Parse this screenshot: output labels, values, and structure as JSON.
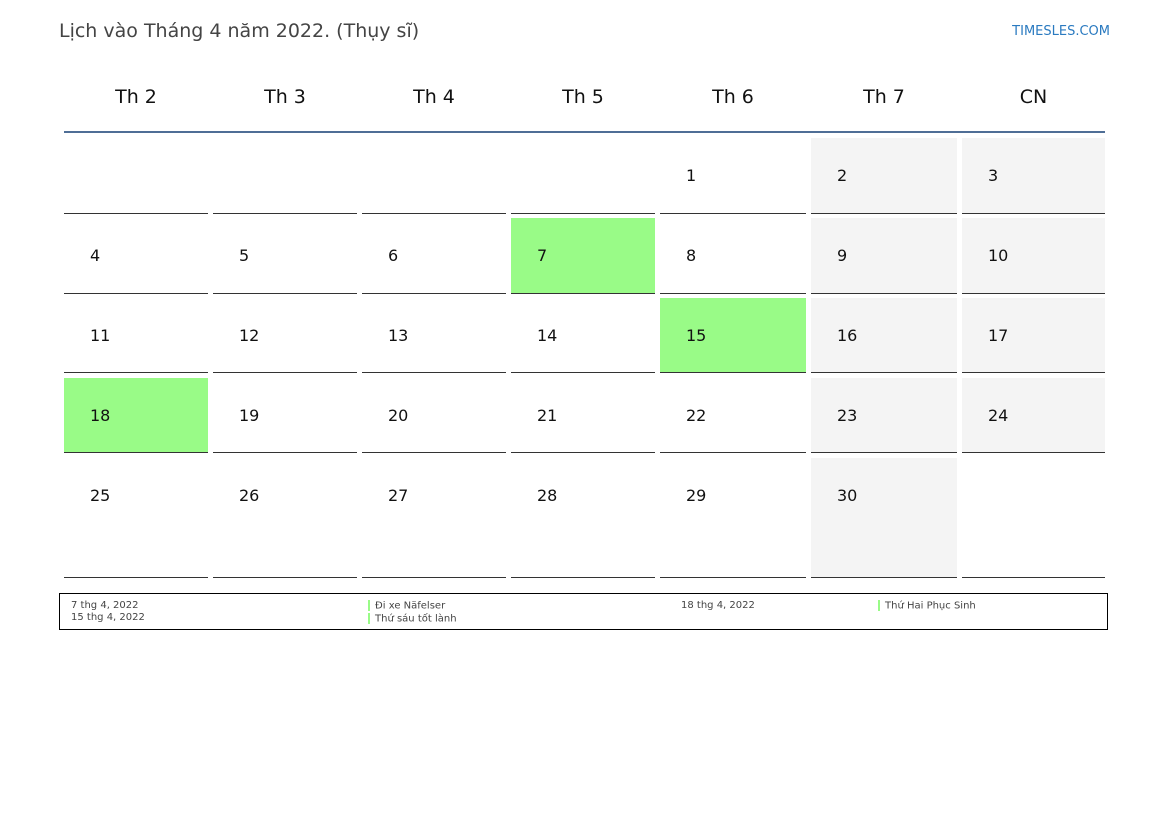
{
  "header": {
    "title": "Lịch vào Tháng 4 năm 2022. (Thụy sĩ)",
    "site_link": "TIMESLES.COM"
  },
  "weekdays": [
    "Th 2",
    "Th 3",
    "Th 4",
    "Th 5",
    "Th 6",
    "Th 7",
    "CN"
  ],
  "colors": {
    "holiday": "#99fb87",
    "weekend": "#f4f4f4",
    "header_line": "#4f6e96"
  },
  "weeks": [
    [
      "",
      "",
      "",
      "",
      "1",
      "2",
      "3"
    ],
    [
      "4",
      "5",
      "6",
      "7",
      "8",
      "9",
      "10"
    ],
    [
      "11",
      "12",
      "13",
      "14",
      "15",
      "16",
      "17"
    ],
    [
      "18",
      "19",
      "20",
      "21",
      "22",
      "23",
      "24"
    ],
    [
      "25",
      "26",
      "27",
      "28",
      "29",
      "30",
      ""
    ]
  ],
  "holidays": [
    "7",
    "15",
    "18"
  ],
  "legend": {
    "left": {
      "dates": [
        "7 thg 4, 2022",
        "15 thg 4, 2022"
      ],
      "names": [
        "Đi xe Näfelser",
        "Thứ sáu tốt lành"
      ]
    },
    "right": {
      "dates": [
        "18 thg 4, 2022"
      ],
      "names": [
        "Thứ Hai Phục Sinh"
      ]
    }
  }
}
